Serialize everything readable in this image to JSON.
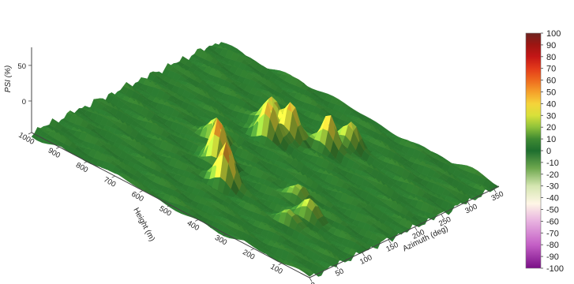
{
  "chart_data": {
    "type": "surface3d",
    "title": "",
    "xlabel": "Azimuth (deg)",
    "ylabel": "Height (m)",
    "zlabel": "PSI (%)",
    "xlim": [
      0,
      360
    ],
    "ylim": [
      0,
      1000
    ],
    "zlim": [
      0,
      70
    ],
    "x_ticks": [
      "0",
      "50",
      "100",
      "150",
      "200",
      "250",
      "300",
      "350"
    ],
    "y_ticks": [
      "100",
      "200",
      "300",
      "400",
      "500",
      "600",
      "700",
      "800",
      "900",
      "1000"
    ],
    "z_ticks": [
      "0",
      "50"
    ],
    "colorbar": {
      "min": -100,
      "max": 100,
      "ticks": [
        "100",
        "90",
        "80",
        "70",
        "60",
        "50",
        "40",
        "30",
        "20",
        "10",
        "0",
        "-10",
        "-20",
        "-30",
        "-40",
        "-50",
        "-60",
        "-70",
        "-80",
        "-90",
        "-100"
      ],
      "stops": [
        {
          "value": -100,
          "color": "#7a0f87"
        },
        {
          "value": -80,
          "color": "#c45fc6"
        },
        {
          "value": -60,
          "color": "#e8b2e0"
        },
        {
          "value": -45,
          "color": "#fff6e6"
        },
        {
          "value": -30,
          "color": "#d4e6b0"
        },
        {
          "value": -15,
          "color": "#6ea84e"
        },
        {
          "value": 0,
          "color": "#1e6e2e"
        },
        {
          "value": 10,
          "color": "#3f8a32"
        },
        {
          "value": 20,
          "color": "#8fc23a"
        },
        {
          "value": 30,
          "color": "#d8e03a"
        },
        {
          "value": 40,
          "color": "#f5d33a"
        },
        {
          "value": 50,
          "color": "#f5a02a"
        },
        {
          "value": 60,
          "color": "#ee6a1e"
        },
        {
          "value": 70,
          "color": "#e33a1a"
        },
        {
          "value": 80,
          "color": "#c41616"
        },
        {
          "value": 90,
          "color": "#9e1512"
        },
        {
          "value": 100,
          "color": "#6e2420"
        }
      ]
    },
    "peaks": [
      {
        "azimuth": 95,
        "height": 480,
        "psi": 55
      },
      {
        "azimuth": 130,
        "height": 570,
        "psi": 60
      },
      {
        "azimuth": 168,
        "height": 650,
        "psi": 30
      },
      {
        "azimuth": 225,
        "height": 570,
        "psi": 45
      },
      {
        "azimuth": 245,
        "height": 530,
        "psi": 50
      },
      {
        "azimuth": 250,
        "height": 610,
        "psi": 38
      },
      {
        "azimuth": 265,
        "height": 430,
        "psi": 45
      },
      {
        "azimuth": 290,
        "height": 400,
        "psi": 30
      },
      {
        "azimuth": 115,
        "height": 210,
        "psi": 30
      },
      {
        "azimuth": 140,
        "height": 300,
        "psi": 25
      },
      {
        "azimuth": 85,
        "height": 230,
        "psi": 20
      }
    ],
    "grid": false,
    "legend": "colorbar-right"
  }
}
